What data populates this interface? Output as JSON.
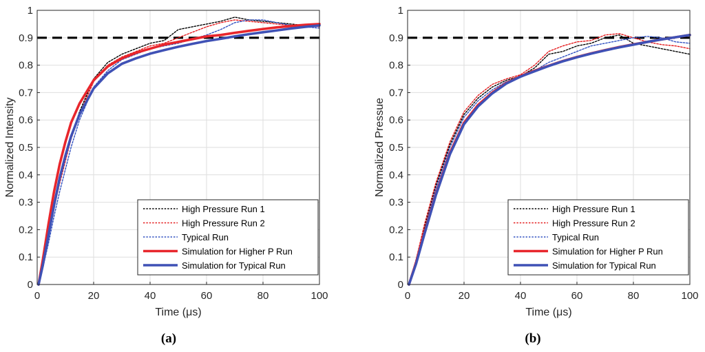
{
  "chart_data": [
    {
      "type": "line",
      "panel_label": "a",
      "xlabel": "Time (μs)",
      "ylabel": "Normalized Intensity",
      "xlim": [
        0,
        100
      ],
      "ylim": [
        0,
        1
      ],
      "xticks": [
        "0",
        "20",
        "40",
        "60",
        "80",
        "100"
      ],
      "yticks": [
        "0",
        "0.1",
        "0.2",
        "0.3",
        "0.4",
        "0.5",
        "0.6",
        "0.7",
        "0.8",
        "0.9",
        "1"
      ],
      "grid": true,
      "reference_line": {
        "y": 0.9,
        "style": "dashed",
        "color": "#000000"
      },
      "legend_position": "bottom-right",
      "series": [
        {
          "name": "High Pressure Run 1",
          "color": "#000000",
          "style": "dotted",
          "x": [
            0.5,
            2,
            4,
            6,
            8,
            10,
            12,
            15,
            20,
            25,
            30,
            35,
            40,
            45,
            50,
            55,
            60,
            65,
            70,
            75,
            80,
            85,
            90,
            95,
            100
          ],
          "y": [
            0,
            0.07,
            0.18,
            0.29,
            0.38,
            0.46,
            0.54,
            0.63,
            0.75,
            0.81,
            0.84,
            0.86,
            0.88,
            0.89,
            0.93,
            0.94,
            0.95,
            0.96,
            0.975,
            0.965,
            0.96,
            0.955,
            0.95,
            0.945,
            0.945
          ]
        },
        {
          "name": "High Pressure Run 2",
          "color": "#e41a1c",
          "style": "dotted",
          "x": [
            0.5,
            2,
            4,
            6,
            8,
            10,
            12,
            15,
            20,
            25,
            30,
            35,
            40,
            45,
            50,
            55,
            60,
            65,
            70,
            75,
            80,
            85,
            90,
            95,
            100
          ],
          "y": [
            0,
            0.07,
            0.17,
            0.28,
            0.37,
            0.45,
            0.53,
            0.62,
            0.74,
            0.8,
            0.83,
            0.85,
            0.87,
            0.88,
            0.9,
            0.92,
            0.94,
            0.955,
            0.965,
            0.96,
            0.955,
            0.95,
            0.945,
            0.945,
            0.94
          ]
        },
        {
          "name": "Typical Run",
          "color": "#3050c0",
          "style": "dotted",
          "x": [
            0.5,
            2,
            4,
            6,
            8,
            10,
            12,
            15,
            20,
            25,
            30,
            35,
            40,
            45,
            50,
            55,
            60,
            65,
            70,
            75,
            80,
            85,
            90,
            95,
            100
          ],
          "y": [
            0,
            0.06,
            0.15,
            0.25,
            0.34,
            0.42,
            0.5,
            0.6,
            0.72,
            0.78,
            0.82,
            0.84,
            0.86,
            0.87,
            0.88,
            0.895,
            0.91,
            0.93,
            0.955,
            0.965,
            0.965,
            0.955,
            0.945,
            0.94,
            0.935
          ]
        },
        {
          "name": "Simulation for Higher P Run",
          "color": "#e8262c",
          "style": "solid-thick",
          "x": [
            0.5,
            2,
            4,
            6,
            8,
            10,
            12,
            15,
            20,
            25,
            30,
            35,
            40,
            45,
            50,
            55,
            60,
            65,
            70,
            75,
            80,
            85,
            90,
            95,
            100
          ],
          "y": [
            0,
            0.09,
            0.22,
            0.34,
            0.44,
            0.52,
            0.59,
            0.66,
            0.745,
            0.795,
            0.825,
            0.845,
            0.86,
            0.875,
            0.885,
            0.895,
            0.905,
            0.91,
            0.918,
            0.925,
            0.932,
            0.938,
            0.943,
            0.947,
            0.95
          ]
        },
        {
          "name": "Simulation for Typical Run",
          "color": "#3f51b5",
          "style": "solid-thick",
          "x": [
            0.5,
            2,
            4,
            6,
            8,
            10,
            12,
            15,
            20,
            25,
            30,
            35,
            40,
            45,
            50,
            55,
            60,
            65,
            70,
            75,
            80,
            85,
            90,
            95,
            100
          ],
          "y": [
            0,
            0.07,
            0.18,
            0.29,
            0.39,
            0.47,
            0.54,
            0.62,
            0.715,
            0.77,
            0.805,
            0.825,
            0.842,
            0.855,
            0.867,
            0.878,
            0.888,
            0.896,
            0.905,
            0.913,
            0.92,
            0.927,
            0.934,
            0.94,
            0.945
          ]
        }
      ]
    },
    {
      "type": "line",
      "panel_label": "b",
      "xlabel": "Time (μs)",
      "ylabel": "Normalized Pressue",
      "xlim": [
        0,
        100
      ],
      "ylim": [
        0,
        1
      ],
      "xticks": [
        "0",
        "20",
        "40",
        "60",
        "80",
        "100"
      ],
      "yticks": [
        "0",
        "0.1",
        "0.2",
        "0.3",
        "0.4",
        "0.5",
        "0.6",
        "0.7",
        "0.8",
        "0.9",
        "1"
      ],
      "grid": true,
      "reference_line": {
        "y": 0.9,
        "style": "dashed",
        "color": "#000000"
      },
      "legend_position": "bottom-right",
      "series": [
        {
          "name": "High Pressure Run 1",
          "color": "#000000",
          "style": "dotted",
          "x": [
            0.5,
            3,
            6,
            10,
            15,
            20,
            25,
            30,
            35,
            40,
            45,
            50,
            55,
            60,
            65,
            70,
            75,
            80,
            85,
            90,
            95,
            100
          ],
          "y": [
            0,
            0.09,
            0.21,
            0.36,
            0.51,
            0.62,
            0.68,
            0.72,
            0.745,
            0.76,
            0.79,
            0.84,
            0.85,
            0.87,
            0.88,
            0.9,
            0.91,
            0.88,
            0.87,
            0.86,
            0.85,
            0.84
          ]
        },
        {
          "name": "High Pressure Run 2",
          "color": "#e41a1c",
          "style": "dotted",
          "x": [
            0.5,
            3,
            6,
            10,
            15,
            20,
            25,
            30,
            35,
            40,
            45,
            50,
            55,
            60,
            65,
            70,
            75,
            80,
            85,
            90,
            95,
            100
          ],
          "y": [
            0,
            0.09,
            0.22,
            0.37,
            0.52,
            0.63,
            0.69,
            0.73,
            0.75,
            0.765,
            0.8,
            0.85,
            0.87,
            0.885,
            0.89,
            0.91,
            0.915,
            0.9,
            0.885,
            0.875,
            0.87,
            0.86
          ]
        },
        {
          "name": "Typical Run",
          "color": "#3050c0",
          "style": "dotted",
          "x": [
            0.5,
            3,
            6,
            10,
            15,
            20,
            25,
            30,
            35,
            40,
            45,
            50,
            55,
            60,
            65,
            70,
            75,
            80,
            85,
            90,
            95,
            100
          ],
          "y": [
            0,
            0.08,
            0.2,
            0.35,
            0.5,
            0.61,
            0.67,
            0.71,
            0.74,
            0.755,
            0.78,
            0.81,
            0.83,
            0.85,
            0.87,
            0.88,
            0.89,
            0.9,
            0.905,
            0.9,
            0.885,
            0.88
          ]
        },
        {
          "name": "Simulation for Higher P Run",
          "color": "#e8262c",
          "style": "solid-thick",
          "x": [
            0.5,
            3,
            6,
            10,
            15,
            20,
            25,
            30,
            35,
            40,
            45,
            50,
            55,
            60,
            65,
            70,
            75,
            80,
            85,
            90,
            95,
            100
          ],
          "y": [
            0,
            0.08,
            0.19,
            0.33,
            0.48,
            0.59,
            0.655,
            0.7,
            0.735,
            0.76,
            0.78,
            0.798,
            0.815,
            0.83,
            0.843,
            0.855,
            0.866,
            0.876,
            0.885,
            0.894,
            0.902,
            0.91
          ]
        },
        {
          "name": "Simulation for Typical Run",
          "color": "#3f51b5",
          "style": "solid-thick",
          "x": [
            0.5,
            3,
            6,
            10,
            15,
            20,
            25,
            30,
            35,
            40,
            45,
            50,
            55,
            60,
            65,
            70,
            75,
            80,
            85,
            90,
            95,
            100
          ],
          "y": [
            0,
            0.075,
            0.185,
            0.325,
            0.475,
            0.585,
            0.65,
            0.697,
            0.733,
            0.758,
            0.778,
            0.797,
            0.814,
            0.829,
            0.842,
            0.854,
            0.865,
            0.875,
            0.885,
            0.894,
            0.902,
            0.91
          ]
        }
      ]
    }
  ]
}
